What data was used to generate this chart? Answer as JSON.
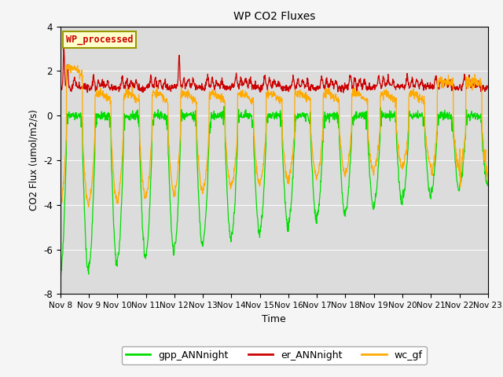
{
  "title": "WP CO2 Fluxes",
  "xlabel": "Time",
  "ylabel": "CO2 Flux (umol/m2/s)",
  "ylim": [
    -8,
    4
  ],
  "background_color": "#dcdcdc",
  "fig_background": "#f5f5f5",
  "label_text": "WP_processed",
  "label_color": "#cc0000",
  "label_bg": "#ffffcc",
  "label_edge": "#999900",
  "gpp_color": "#00dd00",
  "er_color": "#cc0000",
  "wc_color": "#ffaa00",
  "legend_labels": [
    "gpp_ANNnight",
    "er_ANNnight",
    "wc_gf"
  ],
  "x_tick_labels": [
    "Nov 8",
    "Nov 9",
    "Nov 10",
    "Nov 11",
    "Nov 12",
    "Nov 13",
    "Nov 14",
    "Nov 15",
    "Nov 16",
    "Nov 17",
    "Nov 18",
    "Nov 19",
    "Nov 20",
    "Nov 21",
    "Nov 22",
    "Nov 23"
  ],
  "x_tick_positions": [
    0,
    1,
    2,
    3,
    4,
    5,
    6,
    7,
    8,
    9,
    10,
    11,
    12,
    13,
    14,
    15
  ],
  "yticks": [
    -8,
    -6,
    -4,
    -2,
    0,
    2,
    4
  ]
}
